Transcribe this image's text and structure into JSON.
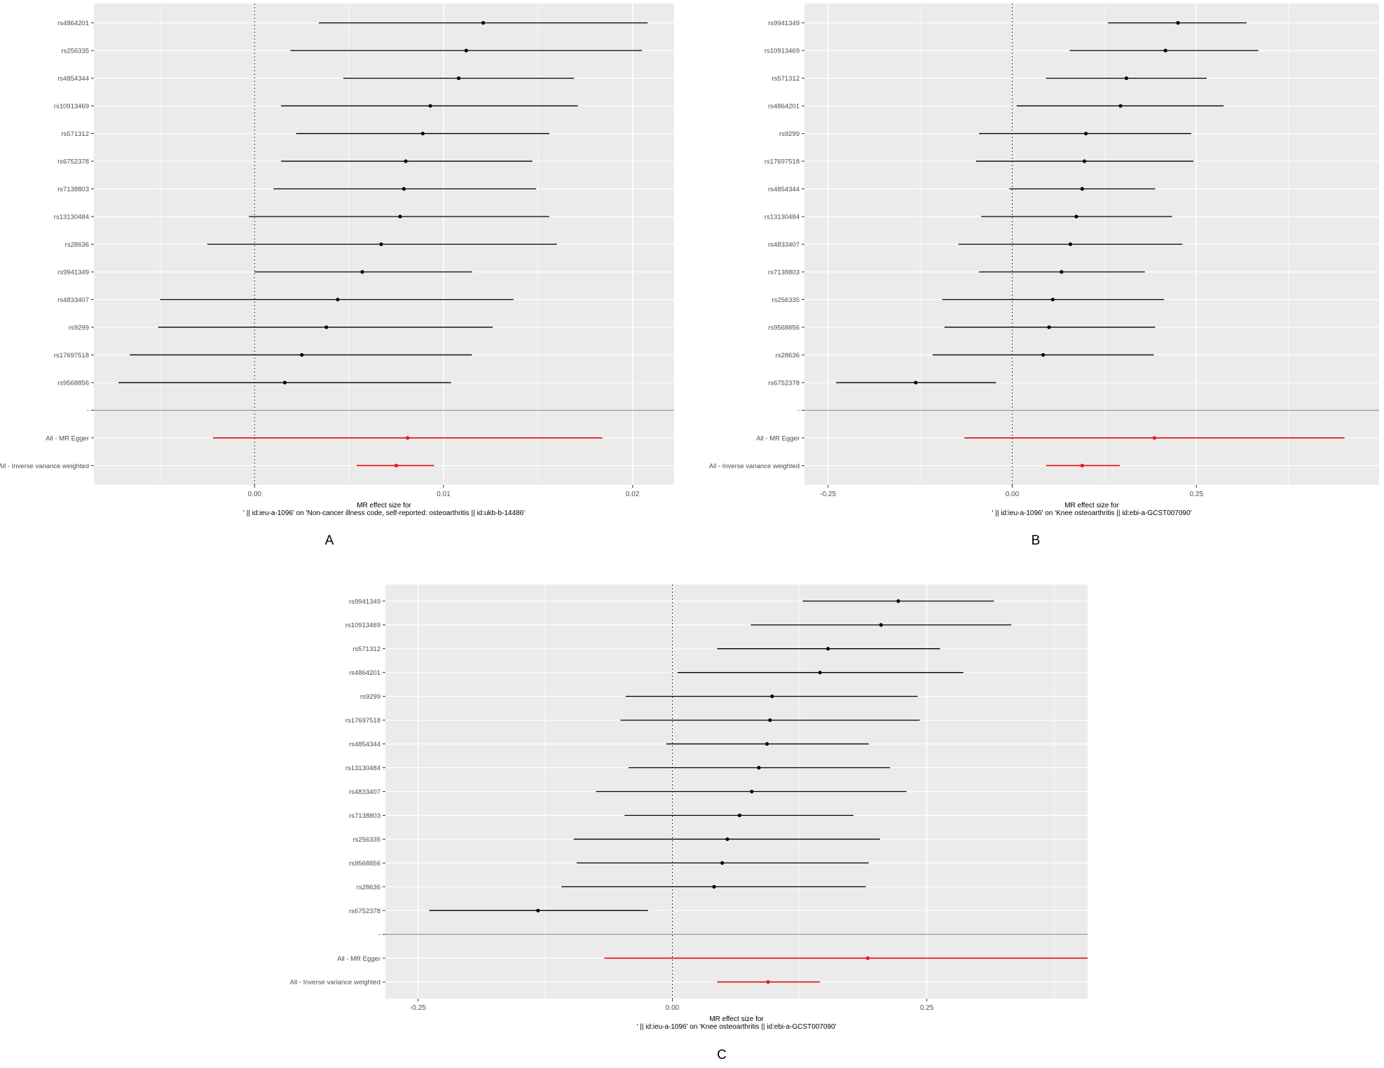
{
  "chart_data": [
    {
      "type": "forest",
      "panel_label": "A",
      "xlabel_line1": "MR effect size for",
      "xlabel_line2": "' || id:ieu-a-1096' on 'Non-cancer illness code, self-reported: osteoarthritis || id:ukb-b-14486'",
      "xlim": [
        -0.0085,
        0.0222
      ],
      "x_ticks": [
        0.0,
        0.01,
        0.02
      ],
      "x_tick_labels": [
        "0.00",
        "0.01",
        "0.02"
      ],
      "zero_reference_line": true,
      "separator_label": "-",
      "snps": [
        {
          "label": "rs4864201",
          "estimate": 0.0121,
          "lower": 0.0034,
          "upper": 0.0208
        },
        {
          "label": "rs256335",
          "estimate": 0.0112,
          "lower": 0.0019,
          "upper": 0.0205
        },
        {
          "label": "rs4854344",
          "estimate": 0.0108,
          "lower": 0.0047,
          "upper": 0.0169
        },
        {
          "label": "rs10913469",
          "estimate": 0.0093,
          "lower": 0.0014,
          "upper": 0.0171
        },
        {
          "label": "rs571312",
          "estimate": 0.0089,
          "lower": 0.0022,
          "upper": 0.0156
        },
        {
          "label": "rs6752378",
          "estimate": 0.008,
          "lower": 0.0014,
          "upper": 0.0147
        },
        {
          "label": "rs7138803",
          "estimate": 0.0079,
          "lower": 0.001,
          "upper": 0.0149
        },
        {
          "label": "rs13130484",
          "estimate": 0.0077,
          "lower": -0.0003,
          "upper": 0.0156
        },
        {
          "label": "rs28636",
          "estimate": 0.0067,
          "lower": -0.0025,
          "upper": 0.016
        },
        {
          "label": "rs9941349",
          "estimate": 0.0057,
          "lower": 0.0,
          "upper": 0.0115
        },
        {
          "label": "rs4833407",
          "estimate": 0.0044,
          "lower": -0.005,
          "upper": 0.0137
        },
        {
          "label": "rs9299",
          "estimate": 0.0038,
          "lower": -0.0051,
          "upper": 0.0126
        },
        {
          "label": "rs17697518",
          "estimate": 0.0025,
          "lower": -0.0066,
          "upper": 0.0115
        },
        {
          "label": "rs9568856",
          "estimate": 0.0016,
          "lower": -0.0072,
          "upper": 0.0104
        }
      ],
      "summary": [
        {
          "label": "All - MR Egger",
          "estimate": 0.0081,
          "lower": -0.0022,
          "upper": 0.0184
        },
        {
          "label": "All - Inverse variance weighted",
          "estimate": 0.0075,
          "lower": 0.0054,
          "upper": 0.0095
        }
      ]
    },
    {
      "type": "forest",
      "panel_label": "B",
      "xlabel_line1": "MR effect size for",
      "xlabel_line2": "' || id:ieu-a-1096' on 'Knee osteoarthritis || id:ebi-a-GCST007090'",
      "xlim": [
        -0.282,
        0.498
      ],
      "x_ticks": [
        -0.25,
        0.0,
        0.25
      ],
      "x_tick_labels": [
        "-0.25",
        "0.00",
        "0.25"
      ],
      "zero_reference_line": true,
      "separator_label": "-",
      "snps": [
        {
          "label": "rs9941349",
          "estimate": 0.225,
          "lower": 0.13,
          "upper": 0.318
        },
        {
          "label": "rs10913469",
          "estimate": 0.208,
          "lower": 0.078,
          "upper": 0.334
        },
        {
          "label": "rs571312",
          "estimate": 0.155,
          "lower": 0.046,
          "upper": 0.264
        },
        {
          "label": "rs4864201",
          "estimate": 0.147,
          "lower": 0.006,
          "upper": 0.287
        },
        {
          "label": "rs9299",
          "estimate": 0.1,
          "lower": -0.045,
          "upper": 0.243
        },
        {
          "label": "rs17697518",
          "estimate": 0.098,
          "lower": -0.049,
          "upper": 0.246
        },
        {
          "label": "rs4854344",
          "estimate": 0.095,
          "lower": -0.004,
          "upper": 0.194
        },
        {
          "label": "rs13130484",
          "estimate": 0.087,
          "lower": -0.042,
          "upper": 0.217
        },
        {
          "label": "rs4833407",
          "estimate": 0.079,
          "lower": -0.073,
          "upper": 0.231
        },
        {
          "label": "rs7138803",
          "estimate": 0.067,
          "lower": -0.045,
          "upper": 0.18
        },
        {
          "label": "rs256335",
          "estimate": 0.055,
          "lower": -0.095,
          "upper": 0.206
        },
        {
          "label": "rs9568856",
          "estimate": 0.05,
          "lower": -0.092,
          "upper": 0.194
        },
        {
          "label": "rs28636",
          "estimate": 0.042,
          "lower": -0.108,
          "upper": 0.192
        },
        {
          "label": "rs6752378",
          "estimate": -0.131,
          "lower": -0.239,
          "upper": -0.022
        }
      ],
      "summary": [
        {
          "label": "All - MR Egger",
          "estimate": 0.193,
          "lower": -0.065,
          "upper": 0.451
        },
        {
          "label": "All - Inverse variance weighted",
          "estimate": 0.095,
          "lower": 0.046,
          "upper": 0.146
        }
      ]
    },
    {
      "type": "forest",
      "panel_label": "C",
      "xlabel_line1": "MR effect size for",
      "xlabel_line2": "' || id:ieu-a-1096' on 'Knee osteoarthritis || id:ebi-a-GCST007090'",
      "xlim": [
        -0.282,
        0.408
      ],
      "x_ticks": [
        -0.25,
        0.0,
        0.25
      ],
      "x_tick_labels": [
        "-0.25",
        "0.00",
        "0.25"
      ],
      "zero_reference_line": true,
      "separator_label": "-",
      "snps": [
        {
          "label": "rs9941349",
          "estimate": 0.222,
          "lower": 0.128,
          "upper": 0.316
        },
        {
          "label": "rs10913469",
          "estimate": 0.205,
          "lower": 0.077,
          "upper": 0.333
        },
        {
          "label": "rs571312",
          "estimate": 0.153,
          "lower": 0.044,
          "upper": 0.263
        },
        {
          "label": "rs4864201",
          "estimate": 0.145,
          "lower": 0.005,
          "upper": 0.286
        },
        {
          "label": "rs9299",
          "estimate": 0.098,
          "lower": -0.046,
          "upper": 0.241
        },
        {
          "label": "rs17697518",
          "estimate": 0.096,
          "lower": -0.051,
          "upper": 0.243
        },
        {
          "label": "rs4854344",
          "estimate": 0.093,
          "lower": -0.006,
          "upper": 0.193
        },
        {
          "label": "rs13130484",
          "estimate": 0.085,
          "lower": -0.043,
          "upper": 0.214
        },
        {
          "label": "rs4833407",
          "estimate": 0.078,
          "lower": -0.075,
          "upper": 0.23
        },
        {
          "label": "rs7138803",
          "estimate": 0.066,
          "lower": -0.047,
          "upper": 0.178
        },
        {
          "label": "rs256335",
          "estimate": 0.054,
          "lower": -0.097,
          "upper": 0.204
        },
        {
          "label": "rs9568856",
          "estimate": 0.049,
          "lower": -0.094,
          "upper": 0.193
        },
        {
          "label": "rs28636",
          "estimate": 0.041,
          "lower": -0.109,
          "upper": 0.19
        },
        {
          "label": "rs6752378",
          "estimate": -0.132,
          "lower": -0.239,
          "upper": -0.024
        }
      ],
      "summary": [
        {
          "label": "All - MR Egger",
          "estimate": 0.192,
          "lower": -0.067,
          "upper": 0.408
        },
        {
          "label": "All - Inverse variance weighted",
          "estimate": 0.094,
          "lower": 0.044,
          "upper": 0.145
        }
      ]
    }
  ],
  "colors": {
    "panel_background": "#ebebeb",
    "grid": "#ffffff",
    "snp_marks": "#000000",
    "summary_marks": "#e41a1c",
    "separator": "#9e9e9e",
    "axis_text": "#4d4d4d"
  }
}
